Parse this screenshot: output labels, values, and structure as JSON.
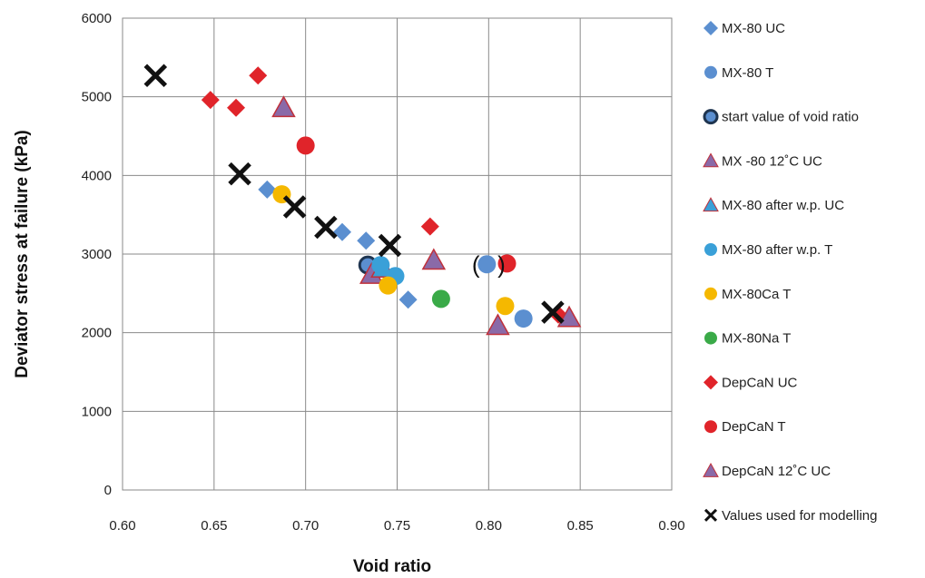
{
  "chart_data": {
    "type": "scatter",
    "xlabel": "Void ratio",
    "ylabel": "Deviator stress at failure (kPa)",
    "xlim": [
      0.6,
      0.9
    ],
    "ylim": [
      0,
      6000
    ],
    "xticks": [
      "0.60",
      "0.65",
      "0.70",
      "0.75",
      "0.80",
      "0.85",
      "0.90"
    ],
    "yticks": [
      "0",
      "1000",
      "2000",
      "3000",
      "4000",
      "5000",
      "6000"
    ],
    "grid": true,
    "legend_position": "right",
    "annotations": [
      {
        "text": "(",
        "x": 0.793,
        "y": 2870
      },
      {
        "text": ")",
        "x": 0.807,
        "y": 2870
      }
    ],
    "series": [
      {
        "name": "MX-80 UC",
        "marker": "diamond",
        "color": "#5b8fd0",
        "points": [
          [
            0.679,
            3820
          ],
          [
            0.72,
            3280
          ],
          [
            0.733,
            3170
          ],
          [
            0.756,
            2420
          ]
        ]
      },
      {
        "name": "MX-80 T",
        "marker": "circle",
        "color": "#5b8fd0",
        "points": [
          [
            0.799,
            2870
          ],
          [
            0.819,
            2180
          ]
        ]
      },
      {
        "name": "start value of void ratio",
        "marker": "circle-dark",
        "color": "#5b8fd0",
        "points": [
          [
            0.734,
            2860
          ]
        ]
      },
      {
        "name": "MX -80 12˚C  UC",
        "marker": "triangle",
        "color": "#8a6aa8",
        "points": [
          [
            0.688,
            4860
          ],
          [
            0.736,
            2740
          ],
          [
            0.77,
            2920
          ]
        ]
      },
      {
        "name": "MX-80 after w.p. UC",
        "marker": "triangle",
        "color": "#3aa0d8",
        "points": [
          [
            0.742,
            2820
          ]
        ]
      },
      {
        "name": "MX-80 after w.p. T",
        "marker": "circle",
        "color": "#3aa0d8",
        "points": [
          [
            0.741,
            2860
          ],
          [
            0.749,
            2720
          ]
        ]
      },
      {
        "name": "MX-80Ca T",
        "marker": "circle",
        "color": "#f5b800",
        "points": [
          [
            0.687,
            3760
          ],
          [
            0.745,
            2600
          ],
          [
            0.809,
            2340
          ]
        ]
      },
      {
        "name": "MX-80Na T",
        "marker": "circle",
        "color": "#3aaa48",
        "points": [
          [
            0.774,
            2430
          ]
        ]
      },
      {
        "name": "DepCaN UC",
        "marker": "diamond",
        "color": "#e0242a",
        "points": [
          [
            0.648,
            4960
          ],
          [
            0.662,
            4860
          ],
          [
            0.674,
            5270
          ],
          [
            0.768,
            3350
          ],
          [
            0.838,
            2230
          ]
        ]
      },
      {
        "name": "DepCaN T",
        "marker": "circle",
        "color": "#e0242a",
        "points": [
          [
            0.7,
            4380
          ],
          [
            0.81,
            2880
          ]
        ]
      },
      {
        "name": "DepCaN 12˚C  UC",
        "marker": "triangle",
        "color": "#8a6aa8",
        "points": [
          [
            0.805,
            2090
          ],
          [
            0.844,
            2190
          ]
        ]
      },
      {
        "name": "Values used for modelling",
        "marker": "x",
        "color": "#111111",
        "points": [
          [
            0.618,
            5270
          ],
          [
            0.664,
            4020
          ],
          [
            0.694,
            3600
          ],
          [
            0.711,
            3340
          ],
          [
            0.746,
            3110
          ],
          [
            0.835,
            2260
          ]
        ]
      }
    ]
  }
}
